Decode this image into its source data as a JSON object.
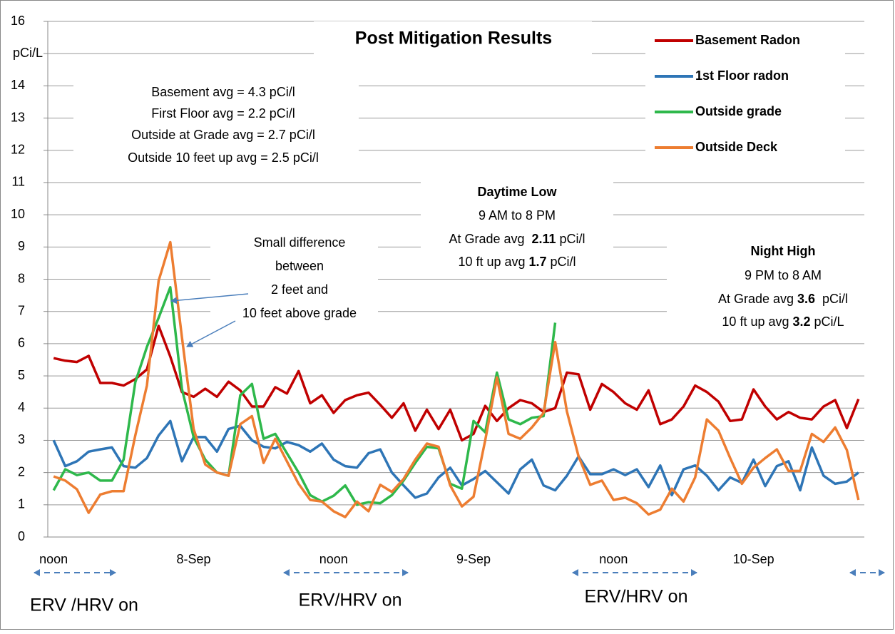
{
  "chart_data": {
    "type": "line",
    "title": "Post Mitigation Results",
    "categories": [
      "noon",
      null,
      null,
      null,
      null,
      null,
      null,
      null,
      null,
      null,
      null,
      null,
      "8-Sep",
      null,
      null,
      null,
      null,
      null,
      null,
      null,
      null,
      null,
      null,
      null,
      "noon",
      null,
      null,
      null,
      null,
      null,
      null,
      null,
      null,
      null,
      null,
      null,
      "9-Sep",
      null,
      null,
      null,
      null,
      null,
      null,
      null,
      null,
      null,
      null,
      null,
      "noon",
      null,
      null,
      null,
      null,
      null,
      null,
      null,
      null,
      null,
      null,
      null,
      "10-Sep",
      null,
      null,
      null,
      null,
      null,
      null,
      null,
      null,
      null
    ],
    "series": [
      {
        "name": "Basement Radon",
        "color": "#c00000",
        "values": [
          5.55,
          5.47,
          5.43,
          5.62,
          4.78,
          4.78,
          4.7,
          4.9,
          5.2,
          6.55,
          5.6,
          4.5,
          4.35,
          4.6,
          4.35,
          4.82,
          4.55,
          4.05,
          4.05,
          4.65,
          4.45,
          5.15,
          4.15,
          4.4,
          3.85,
          4.25,
          4.4,
          4.48,
          4.1,
          3.7,
          4.15,
          3.3,
          3.95,
          3.35,
          3.95,
          3.0,
          3.2,
          4.07,
          3.6,
          4.0,
          4.25,
          4.15,
          3.88,
          4.0,
          5.1,
          5.05,
          3.95,
          4.75,
          4.5,
          4.15,
          3.95,
          4.55,
          3.5,
          3.65,
          4.05,
          4.7,
          4.5,
          4.2,
          3.6,
          3.65,
          4.58,
          4.05,
          3.65,
          3.88,
          3.7,
          3.65,
          4.05,
          4.25,
          3.38,
          4.28
        ]
      },
      {
        "name": "1st Floor radon",
        "color": "#2e75b6",
        "values": [
          3.0,
          2.2,
          2.35,
          2.65,
          2.72,
          2.78,
          2.2,
          2.15,
          2.45,
          3.15,
          3.6,
          2.35,
          3.1,
          3.1,
          2.65,
          3.35,
          3.45,
          3.0,
          2.8,
          2.75,
          2.95,
          2.85,
          2.65,
          2.9,
          2.4,
          2.2,
          2.15,
          2.6,
          2.72,
          2.0,
          1.6,
          1.22,
          1.35,
          1.85,
          2.15,
          1.6,
          1.8,
          2.05,
          1.7,
          1.35,
          2.1,
          2.4,
          1.6,
          1.45,
          1.9,
          2.5,
          1.95,
          1.95,
          2.1,
          1.92,
          2.1,
          1.55,
          2.22,
          1.3,
          2.1,
          2.22,
          1.9,
          1.45,
          1.85,
          1.68,
          2.4,
          1.58,
          2.2,
          2.35,
          1.45,
          2.78,
          1.9,
          1.65,
          1.72,
          2.0
        ]
      },
      {
        "name": "Outside grade",
        "color": "#2eb84b",
        "values": [
          1.45,
          2.1,
          1.92,
          2.0,
          1.75,
          1.75,
          2.4,
          4.8,
          5.9,
          6.8,
          7.75,
          4.6,
          3.1,
          2.4,
          2.0,
          1.9,
          4.4,
          4.75,
          3.05,
          3.2,
          2.6,
          2.0,
          1.3,
          1.1,
          1.28,
          1.6,
          1.0,
          1.08,
          1.05,
          1.3,
          1.75,
          2.3,
          2.8,
          2.75,
          1.65,
          1.5,
          3.6,
          3.25,
          5.1,
          3.65,
          3.5,
          3.7,
          3.75,
          6.65,
          null,
          null,
          null,
          null,
          null,
          null,
          null,
          null,
          null,
          null,
          null,
          null,
          null,
          null,
          null,
          null,
          null,
          null,
          null,
          null,
          null,
          null,
          null,
          null,
          null,
          null
        ]
      },
      {
        "name": "Outside Deck",
        "color": "#ed7d31",
        "values": [
          1.88,
          1.75,
          1.48,
          0.75,
          1.32,
          1.42,
          1.42,
          3.15,
          4.7,
          7.95,
          9.15,
          6.2,
          3.35,
          2.25,
          2.0,
          1.9,
          3.5,
          3.75,
          2.3,
          3.05,
          2.35,
          1.65,
          1.15,
          1.1,
          0.8,
          0.62,
          1.1,
          0.8,
          1.62,
          1.4,
          1.8,
          2.4,
          2.9,
          2.8,
          1.6,
          0.95,
          1.25,
          3.0,
          4.95,
          3.2,
          3.05,
          3.4,
          3.85,
          6.05,
          3.9,
          2.5,
          1.62,
          1.75,
          1.15,
          1.22,
          1.05,
          0.7,
          0.85,
          1.5,
          1.1,
          1.85,
          3.65,
          3.3,
          2.45,
          1.65,
          2.15,
          2.45,
          2.72,
          2.05,
          2.05,
          3.2,
          2.95,
          3.4,
          2.7,
          1.15
        ]
      }
    ],
    "ylim": [
      0,
      16
    ],
    "yticks": [
      0,
      1,
      2,
      3,
      4,
      5,
      6,
      7,
      8,
      9,
      10,
      11,
      12,
      13,
      14,
      {
        "value": 15,
        "label": "pCi/L"
      },
      16
    ],
    "grid": true,
    "legend": "top-right",
    "annotations": [
      {
        "lines": [
          "Basement avg =  4.3 pCi/l",
          "First Floor avg = 2.2 pCi/l",
          "Outside at Grade avg = 2.7 pCi/l",
          "Outside 10 feet up avg  = 2.5 pCi/l"
        ]
      },
      {
        "lines": [
          "Small difference",
          "between",
          "2 feet and",
          "10 feet above grade"
        ]
      },
      {
        "lines": [
          [
            {
              "text": "Daytime Low",
              "bold": true
            }
          ],
          "9 AM to 8 PM",
          [
            {
              "text": "At Grade avg  ",
              "bold": false
            },
            {
              "text": "2.11",
              "bold": true
            },
            {
              "text": " pCi/l",
              "bold": false
            }
          ],
          [
            {
              "text": "10 ft up avg ",
              "bold": false
            },
            {
              "text": "1.7",
              "bold": true
            },
            {
              "text": " pCi/l",
              "bold": false
            }
          ]
        ]
      },
      {
        "lines": [
          [
            {
              "text": "Night High",
              "bold": true
            }
          ],
          "9 PM to 8 AM",
          [
            {
              "text": "At Grade avg ",
              "bold": false
            },
            {
              "text": "3.6",
              "bold": true
            },
            {
              "text": "  pCi/l",
              "bold": false
            }
          ],
          [
            {
              "text": "10 ft up avg ",
              "bold": false
            },
            {
              "text": "3.2",
              "bold": true
            },
            {
              "text": " pCi/L",
              "bold": false
            }
          ]
        ]
      }
    ],
    "period_labels": [
      "ERV /HRV on",
      "ERV/HRV on",
      "ERV/HRV on"
    ]
  }
}
